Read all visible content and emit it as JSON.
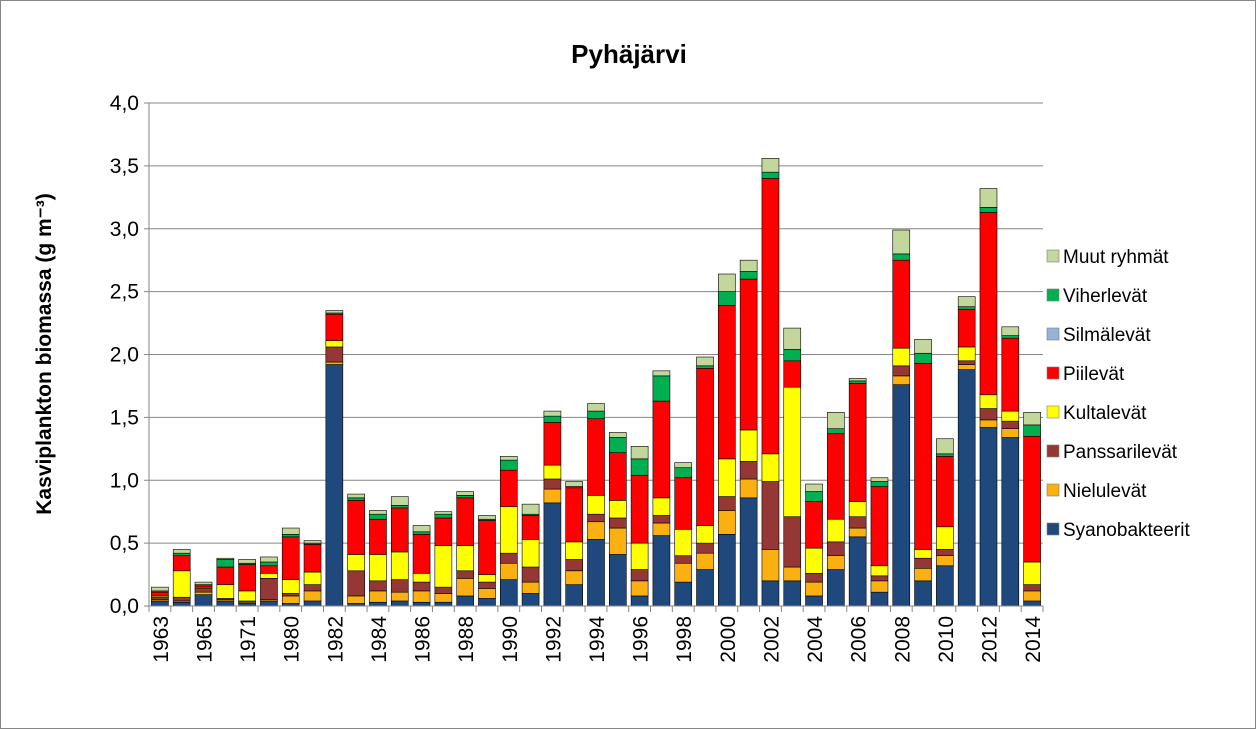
{
  "chart_data": {
    "type": "bar",
    "stacked": true,
    "title": "Pyhäjärvi",
    "ylabel": "Kasviplankton biomassa (g m⁻³)",
    "xlabel": "",
    "ylim": [
      0,
      4
    ],
    "yticks": [
      "0,0",
      "0,5",
      "1,0",
      "1,5",
      "2,0",
      "2,5",
      "3,0",
      "3,5",
      "4,0"
    ],
    "grid": "horizontal",
    "legend_position": "right",
    "categories": [
      "1963",
      "1964",
      "1965",
      "1966",
      "1971",
      "1972",
      "1980",
      "1981",
      "1982",
      "1983",
      "1984",
      "1985",
      "1986",
      "1987",
      "1988",
      "1989",
      "1990",
      "1991",
      "1992",
      "1993",
      "1994",
      "1995",
      "1996",
      "1997",
      "1998",
      "1999",
      "2000",
      "2001",
      "2002",
      "2003",
      "2004",
      "2005",
      "2006",
      "2007",
      "2008",
      "2009",
      "2010",
      "2011",
      "2012",
      "2013",
      "2014"
    ],
    "tick_labels": [
      "1963",
      "",
      "1965",
      "",
      "1971",
      "",
      "1980",
      "",
      "1982",
      "",
      "1984",
      "",
      "1986",
      "",
      "1988",
      "",
      "1990",
      "",
      "1992",
      "",
      "1994",
      "",
      "1996",
      "",
      "1998",
      "",
      "2000",
      "",
      "2002",
      "",
      "2004",
      "",
      "2006",
      "",
      "2008",
      "",
      "2010",
      "",
      "2012",
      "",
      "2014"
    ],
    "series": [
      {
        "name": "Syanobakteerit",
        "color": "#1F497D",
        "values": [
          0.04,
          0.03,
          0.09,
          0.04,
          0.02,
          0.04,
          0.02,
          0.04,
          1.92,
          0.02,
          0.03,
          0.04,
          0.03,
          0.03,
          0.08,
          0.06,
          0.21,
          0.1,
          0.82,
          0.17,
          0.53,
          0.41,
          0.08,
          0.56,
          0.19,
          0.29,
          0.57,
          0.86,
          0.2,
          0.2,
          0.08,
          0.29,
          0.55,
          0.11,
          1.76,
          0.2,
          0.32,
          1.88,
          1.42,
          1.34,
          0.04
        ]
      },
      {
        "name": "Nielulevät",
        "color": "#F9B010",
        "values": [
          0.01,
          0.01,
          0.02,
          0.01,
          0.01,
          0.01,
          0.06,
          0.08,
          0.02,
          0.06,
          0.09,
          0.07,
          0.09,
          0.07,
          0.14,
          0.08,
          0.13,
          0.09,
          0.11,
          0.11,
          0.14,
          0.21,
          0.12,
          0.1,
          0.15,
          0.13,
          0.19,
          0.15,
          0.25,
          0.11,
          0.11,
          0.11,
          0.07,
          0.09,
          0.07,
          0.1,
          0.08,
          0.04,
          0.06,
          0.07,
          0.08
        ]
      },
      {
        "name": "Panssarilevät",
        "color": "#953735",
        "values": [
          0.02,
          0.03,
          0.02,
          0.01,
          0.01,
          0.17,
          0.02,
          0.05,
          0.12,
          0.2,
          0.08,
          0.1,
          0.07,
          0.05,
          0.06,
          0.05,
          0.08,
          0.12,
          0.08,
          0.09,
          0.06,
          0.08,
          0.09,
          0.06,
          0.06,
          0.08,
          0.11,
          0.14,
          0.54,
          0.4,
          0.07,
          0.11,
          0.09,
          0.04,
          0.08,
          0.08,
          0.05,
          0.03,
          0.09,
          0.06,
          0.05
        ]
      },
      {
        "name": "Kultalevät",
        "color": "#FFFF00",
        "values": [
          0.01,
          0.21,
          0.01,
          0.11,
          0.08,
          0.04,
          0.11,
          0.1,
          0.05,
          0.13,
          0.21,
          0.22,
          0.07,
          0.33,
          0.2,
          0.06,
          0.37,
          0.22,
          0.11,
          0.14,
          0.15,
          0.14,
          0.21,
          0.14,
          0.21,
          0.14,
          0.3,
          0.25,
          0.22,
          1.03,
          0.2,
          0.18,
          0.12,
          0.08,
          0.14,
          0.07,
          0.18,
          0.11,
          0.11,
          0.08,
          0.18
        ]
      },
      {
        "name": "Piilevät",
        "color": "#FF0000",
        "values": [
          0.03,
          0.12,
          0.02,
          0.14,
          0.21,
          0.06,
          0.34,
          0.22,
          0.21,
          0.43,
          0.28,
          0.35,
          0.31,
          0.22,
          0.38,
          0.43,
          0.29,
          0.19,
          0.34,
          0.43,
          0.61,
          0.38,
          0.54,
          0.77,
          0.41,
          1.25,
          1.22,
          1.2,
          2.19,
          0.21,
          0.37,
          0.68,
          0.94,
          0.63,
          0.7,
          1.48,
          0.56,
          0.3,
          1.45,
          0.58,
          1.0
        ]
      },
      {
        "name": "Silmälevät",
        "color": "#95B3D7",
        "values": [
          0.0,
          0.0,
          0.0,
          0.0,
          0.0,
          0.0,
          0.0,
          0.0,
          0.0,
          0.0,
          0.0,
          0.0,
          0.0,
          0.0,
          0.0,
          0.0,
          0.0,
          0.0,
          0.0,
          0.0,
          0.0,
          0.0,
          0.0,
          0.0,
          0.0,
          0.0,
          0.0,
          0.0,
          0.0,
          0.0,
          0.0,
          0.0,
          0.0,
          0.0,
          0.0,
          0.0,
          0.0,
          0.0,
          0.0,
          0.0,
          0.0
        ]
      },
      {
        "name": "Viherlevät",
        "color": "#00B050",
        "values": [
          0.01,
          0.02,
          0.01,
          0.06,
          0.01,
          0.03,
          0.02,
          0.01,
          0.01,
          0.02,
          0.04,
          0.02,
          0.02,
          0.03,
          0.02,
          0.01,
          0.08,
          0.01,
          0.05,
          0.01,
          0.06,
          0.12,
          0.13,
          0.2,
          0.08,
          0.02,
          0.11,
          0.06,
          0.05,
          0.09,
          0.08,
          0.04,
          0.02,
          0.04,
          0.05,
          0.08,
          0.02,
          0.02,
          0.04,
          0.02,
          0.09
        ]
      },
      {
        "name": "Muut ryhmät",
        "color": "#C3D69B",
        "values": [
          0.03,
          0.03,
          0.02,
          0.01,
          0.03,
          0.04,
          0.05,
          0.02,
          0.02,
          0.03,
          0.03,
          0.07,
          0.05,
          0.02,
          0.03,
          0.03,
          0.03,
          0.08,
          0.04,
          0.04,
          0.06,
          0.04,
          0.1,
          0.04,
          0.04,
          0.07,
          0.14,
          0.09,
          0.11,
          0.17,
          0.06,
          0.13,
          0.02,
          0.03,
          0.19,
          0.11,
          0.12,
          0.08,
          0.15,
          0.07,
          0.1
        ]
      }
    ]
  }
}
